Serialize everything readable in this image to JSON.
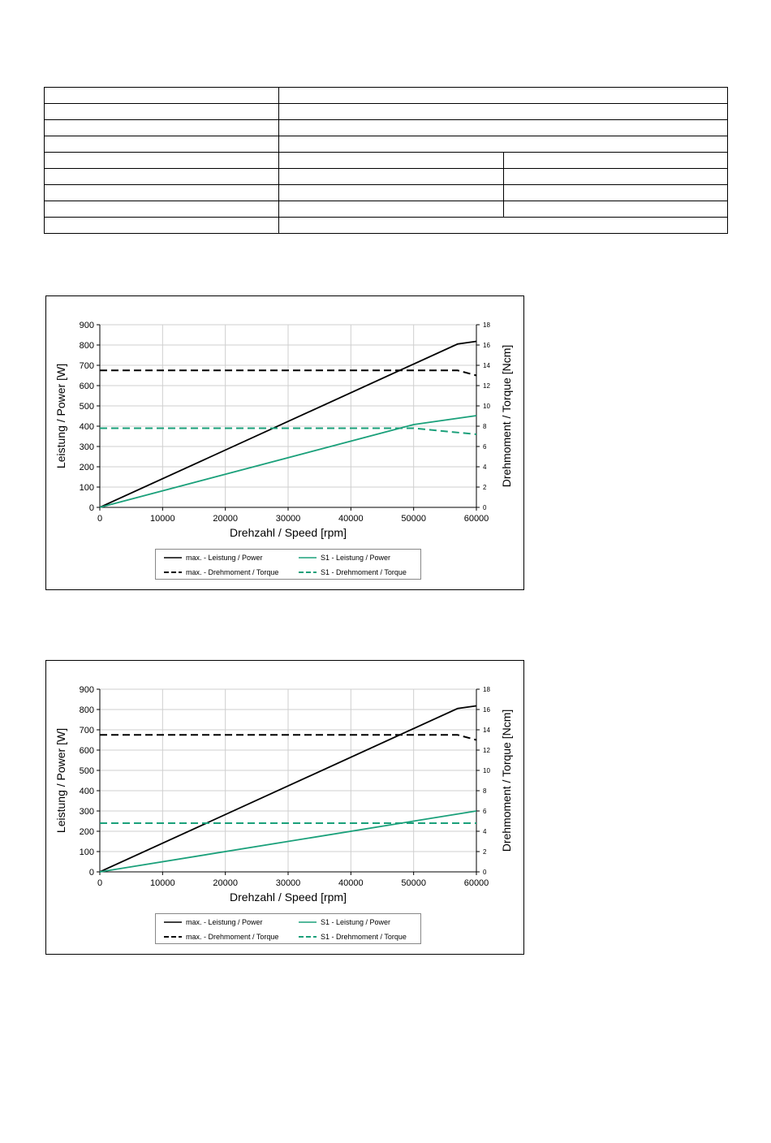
{
  "spec_table": {
    "rows": [
      [
        "",
        ""
      ],
      [
        "",
        ""
      ],
      [
        "",
        ""
      ],
      [
        "",
        ""
      ],
      [
        "",
        "",
        ""
      ],
      [
        "",
        "",
        ""
      ],
      [
        "",
        "",
        ""
      ],
      [
        "",
        "",
        ""
      ],
      [
        "",
        ""
      ]
    ]
  },
  "colors": {
    "max": "#000000",
    "s1": "#1aa07a",
    "grid": "#cfcfcf"
  },
  "chart_data": [
    {
      "type": "line",
      "xlabel": "Drehzahl / Speed [rpm]",
      "ylabel": "Leistung / Power [W]",
      "y2label": "Drehmoment / Torque [Ncm]",
      "xlim": [
        0,
        60000
      ],
      "ylim": [
        0,
        900
      ],
      "y2lim": [
        0,
        18
      ],
      "xticks": [
        0,
        10000,
        20000,
        30000,
        40000,
        50000,
        60000
      ],
      "yticks": [
        0,
        100,
        200,
        300,
        400,
        500,
        600,
        700,
        800,
        900
      ],
      "y2ticks": [
        0,
        2,
        4,
        6,
        8,
        10,
        12,
        14,
        16,
        18
      ],
      "grid": true,
      "legend_position": "bottom",
      "series": [
        {
          "name": "max. - Leistung / Power",
          "axis": "left",
          "style": "solid",
          "color": "max",
          "x": [
            0,
            57000,
            60000
          ],
          "y": [
            0,
            805,
            818
          ]
        },
        {
          "name": "S1 - Leistung / Power",
          "axis": "left",
          "style": "solid",
          "color": "s1",
          "x": [
            0,
            50000,
            60000
          ],
          "y": [
            0,
            408,
            452
          ]
        },
        {
          "name": "max. - Drehmoment / Torque",
          "axis": "right",
          "style": "dashed",
          "color": "max",
          "x": [
            0,
            57000,
            60000
          ],
          "y": [
            13.5,
            13.5,
            13.0
          ]
        },
        {
          "name": "S1 - Drehmoment / Torque",
          "axis": "right",
          "style": "dashed",
          "color": "s1",
          "x": [
            0,
            50000,
            60000
          ],
          "y": [
            7.8,
            7.8,
            7.2
          ]
        }
      ]
    },
    {
      "type": "line",
      "xlabel": "Drehzahl / Speed [rpm]",
      "ylabel": "Leistung / Power [W]",
      "y2label": "Drehmoment / Torque [Ncm]",
      "xlim": [
        0,
        60000
      ],
      "ylim": [
        0,
        900
      ],
      "y2lim": [
        0,
        18
      ],
      "xticks": [
        0,
        10000,
        20000,
        30000,
        40000,
        50000,
        60000
      ],
      "yticks": [
        0,
        100,
        200,
        300,
        400,
        500,
        600,
        700,
        800,
        900
      ],
      "y2ticks": [
        0,
        2,
        4,
        6,
        8,
        10,
        12,
        14,
        16,
        18
      ],
      "grid": true,
      "legend_position": "bottom",
      "series": [
        {
          "name": "max. - Leistung / Power",
          "axis": "left",
          "style": "solid",
          "color": "max",
          "x": [
            0,
            57000,
            60000
          ],
          "y": [
            0,
            805,
            818
          ]
        },
        {
          "name": "S1 - Leistung / Power",
          "axis": "left",
          "style": "solid",
          "color": "s1",
          "x": [
            0,
            60000
          ],
          "y": [
            0,
            300
          ]
        },
        {
          "name": "max. - Drehmoment / Torque",
          "axis": "right",
          "style": "dashed",
          "color": "max",
          "x": [
            0,
            57000,
            60000
          ],
          "y": [
            13.5,
            13.5,
            13.0
          ]
        },
        {
          "name": "S1 - Drehmoment / Torque",
          "axis": "right",
          "style": "dashed",
          "color": "s1",
          "x": [
            0,
            60000
          ],
          "y": [
            4.8,
            4.8
          ]
        }
      ]
    }
  ]
}
